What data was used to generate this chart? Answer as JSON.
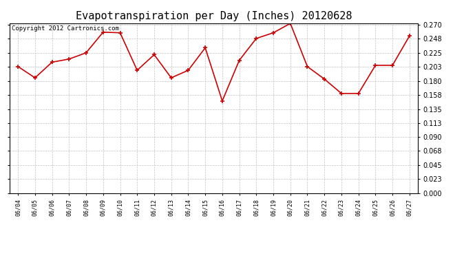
{
  "title": "Evapotranspiration per Day (Inches) 20120628",
  "copyright": "Copyright 2012 Cartronics.com",
  "dates": [
    "06/04",
    "06/05",
    "06/06",
    "06/07",
    "06/08",
    "06/09",
    "06/10",
    "06/11",
    "06/12",
    "06/13",
    "06/14",
    "06/15",
    "06/16",
    "06/17",
    "06/18",
    "06/19",
    "06/20",
    "06/21",
    "06/22",
    "06/23",
    "06/24",
    "06/25",
    "06/26",
    "06/27"
  ],
  "values": [
    0.203,
    0.185,
    0.21,
    0.215,
    0.225,
    0.258,
    0.257,
    0.197,
    0.222,
    0.185,
    0.197,
    0.233,
    0.148,
    0.213,
    0.248,
    0.257,
    0.272,
    0.203,
    0.183,
    0.16,
    0.16,
    0.205,
    0.205,
    0.252
  ],
  "ylim": [
    0.0,
    0.2723
  ],
  "yticks": [
    0.0,
    0.023,
    0.045,
    0.068,
    0.09,
    0.113,
    0.135,
    0.158,
    0.18,
    0.203,
    0.225,
    0.248,
    0.27
  ],
  "line_color": "#cc0000",
  "marker_color": "#cc0000",
  "bg_color": "#ffffff",
  "plot_bg_color": "#ffffff",
  "grid_color": "#bbbbbb",
  "title_fontsize": 11,
  "copyright_fontsize": 6.5
}
